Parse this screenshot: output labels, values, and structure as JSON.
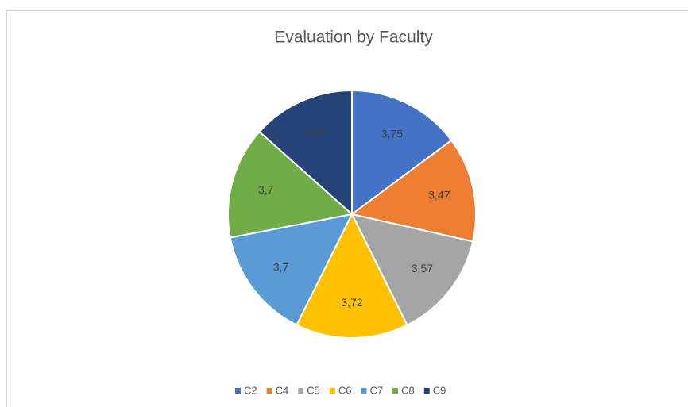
{
  "chart_data": {
    "type": "pie",
    "title": "Evaluation by Faculty",
    "categories": [
      "C2",
      "C4",
      "C5",
      "C6",
      "C7",
      "C8",
      "C9"
    ],
    "values": [
      3.75,
      3.47,
      3.57,
      3.72,
      3.7,
      3.7,
      3.39
    ],
    "value_labels": [
      "3,75",
      "3,47",
      "3,57",
      "3,72",
      "3,7",
      "3,7",
      "3,39"
    ],
    "colors": [
      "#4472c4",
      "#ed7d31",
      "#a5a5a5",
      "#ffc000",
      "#5b9bd5",
      "#70ad47",
      "#264478"
    ],
    "legend": "bottom"
  }
}
